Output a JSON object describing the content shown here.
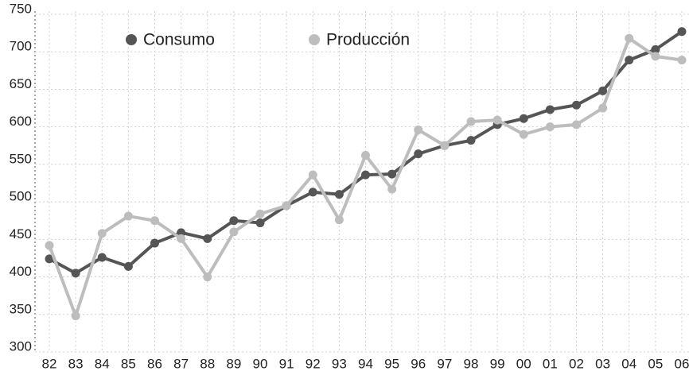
{
  "chart_data": {
    "type": "line",
    "categories": [
      "82",
      "83",
      "84",
      "85",
      "86",
      "87",
      "88",
      "89",
      "90",
      "91",
      "92",
      "93",
      "94",
      "95",
      "96",
      "97",
      "98",
      "99",
      "00",
      "01",
      "02",
      "03",
      "04",
      "05",
      "06"
    ],
    "series": [
      {
        "name": "Consumo",
        "color": "#555555",
        "values": [
          424,
          405,
          426,
          414,
          445,
          459,
          451,
          475,
          472,
          495,
          513,
          510,
          536,
          537,
          564,
          575,
          582,
          603,
          611,
          623,
          629,
          648,
          689,
          703,
          727
        ]
      },
      {
        "name": "Producción",
        "color": "#bdbdbd",
        "values": [
          442,
          348,
          458,
          481,
          475,
          451,
          400,
          460,
          484,
          495,
          536,
          476,
          562,
          517,
          596,
          575,
          607,
          609,
          590,
          600,
          603,
          625,
          718,
          694,
          689
        ]
      }
    ],
    "ylim": [
      300,
      750
    ],
    "yticks": [
      300,
      350,
      400,
      450,
      500,
      550,
      600,
      650,
      700,
      750
    ],
    "grid": true
  }
}
